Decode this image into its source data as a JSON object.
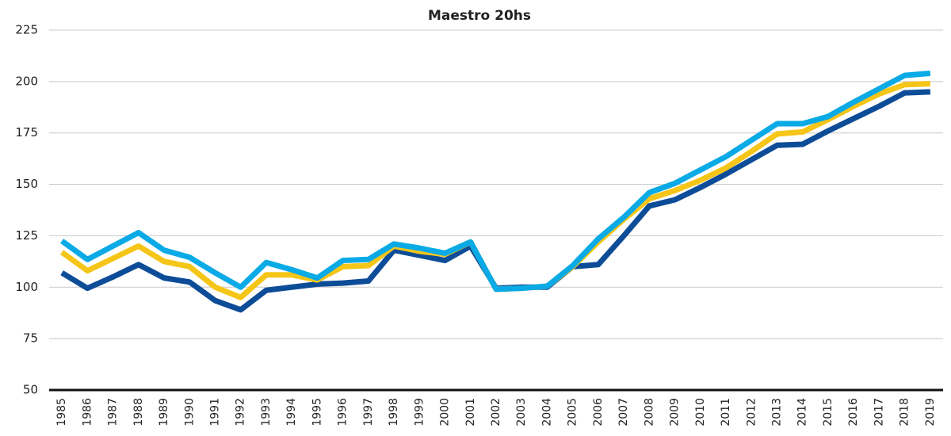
{
  "chart_data": {
    "type": "line",
    "title": "Maestro 20hs",
    "categories": [
      "1985",
      "1986",
      "1987",
      "1988",
      "1989",
      "1990",
      "1991",
      "1992",
      "1993",
      "1994",
      "1995",
      "1996",
      "1997",
      "1998",
      "1999",
      "2000",
      "2001",
      "2002",
      "2003",
      "2004",
      "2005",
      "2006",
      "2007",
      "2008",
      "2009",
      "2010",
      "2011",
      "2012",
      "2013",
      "2014",
      "2015",
      "2016",
      "2017",
      "2018",
      "2019"
    ],
    "series": [
      {
        "color": "#0d4c97",
        "values": [
          107,
          99.5,
          105,
          111,
          104.5,
          102.5,
          93.5,
          89,
          98.5,
          100,
          101.5,
          102,
          103,
          118,
          115.5,
          113,
          120,
          99.5,
          100,
          100,
          110,
          111,
          125,
          139.5,
          142.5,
          148.5,
          155,
          162,
          169,
          169.5,
          176,
          182,
          188,
          194.5,
          195
        ]
      },
      {
        "color": "#f5c518",
        "values": [
          117,
          108,
          114,
          120,
          112.5,
          110,
          100,
          95,
          106,
          106,
          103.5,
          110,
          110.5,
          120,
          117.5,
          116,
          122,
          99,
          99.5,
          100.5,
          110,
          122,
          133,
          143,
          147,
          152,
          158,
          166,
          174.5,
          175.5,
          181.5,
          188,
          194,
          198.5,
          199
        ]
      },
      {
        "color": "#0aaae6",
        "values": [
          122.5,
          113.5,
          120,
          126.5,
          118,
          114.5,
          107,
          100,
          112,
          108.5,
          104.5,
          113,
          113.5,
          121,
          119,
          116.5,
          122,
          99,
          99.5,
          100.5,
          110.5,
          123.5,
          134,
          146,
          150.5,
          157,
          163.5,
          171.5,
          179.5,
          179.5,
          183,
          190,
          196.5,
          203,
          204
        ]
      }
    ],
    "ylim": [
      50,
      225
    ],
    "yticks": [
      50,
      75,
      100,
      125,
      150,
      175,
      200,
      225
    ],
    "grid": true
  }
}
